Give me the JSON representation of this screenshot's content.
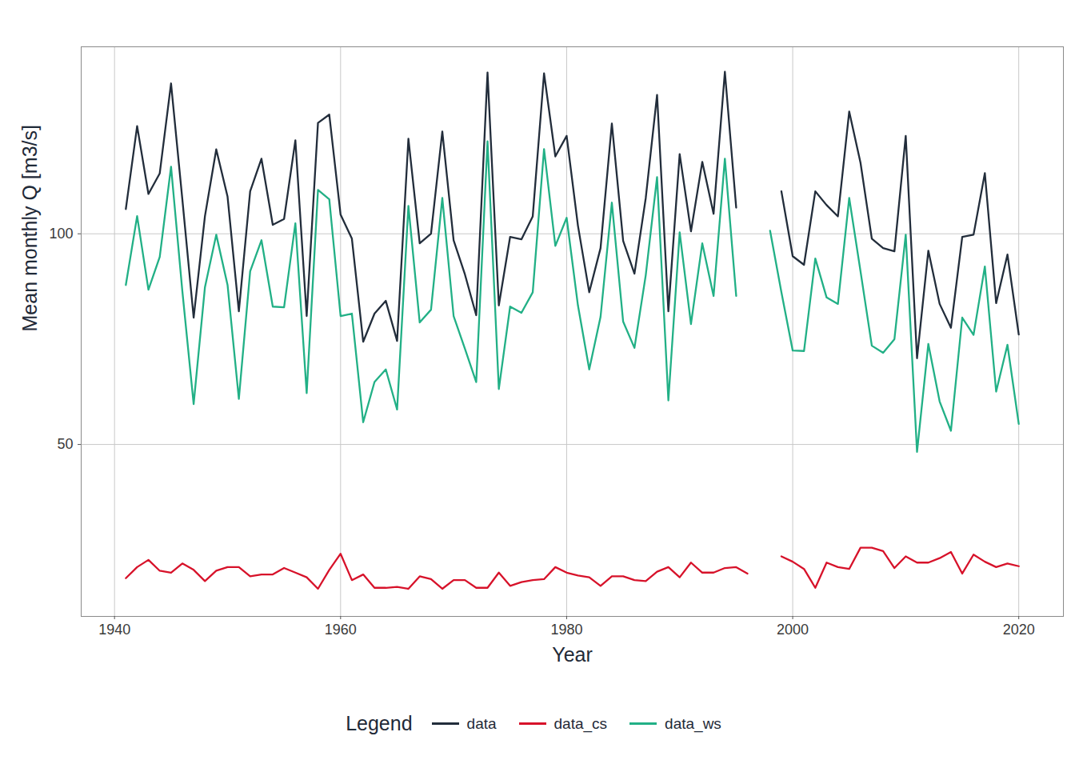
{
  "chart_data": {
    "type": "line",
    "x_label": "Year",
    "y_label": "Mean monthly Q [m3/s]",
    "legend_title": "Legend",
    "legend": "bottom",
    "grid": true,
    "log": "y",
    "xlim": [
      1937.05,
      2023.95
    ],
    "xticks": [
      1940,
      1960,
      1980,
      2000,
      2020
    ],
    "ylim": [
      28.4,
      185
    ],
    "yticks": [
      50,
      100
    ],
    "x": [
      1941,
      1942,
      1943,
      1944,
      1945,
      1946,
      1947,
      1948,
      1949,
      1950,
      1951,
      1952,
      1953,
      1954,
      1955,
      1956,
      1957,
      1958,
      1959,
      1960,
      1961,
      1962,
      1963,
      1964,
      1965,
      1966,
      1967,
      1968,
      1969,
      1970,
      1971,
      1972,
      1973,
      1974,
      1975,
      1976,
      1977,
      1978,
      1979,
      1980,
      1981,
      1982,
      1983,
      1984,
      1985,
      1986,
      1987,
      1988,
      1989,
      1990,
      1991,
      1992,
      1993,
      1994,
      1995,
      1996,
      1997,
      1998,
      1999,
      2000,
      2001,
      2002,
      2003,
      2004,
      2005,
      2006,
      2007,
      2008,
      2009,
      2010,
      2011,
      2012,
      2013,
      2014,
      2015,
      2016,
      2017,
      2018,
      2019,
      2020
    ],
    "series": [
      {
        "name": "data",
        "color": "#222d3b",
        "values": [
          108.5,
          142.5,
          114,
          122,
          164,
          112,
          75.9,
          106,
          132,
          113,
          77.5,
          115,
          128,
          103,
          105,
          136,
          76.3,
          144,
          148,
          106.5,
          98.4,
          70.1,
          76.9,
          80.2,
          70.3,
          136.7,
          96.9,
          100,
          140,
          97.9,
          87.5,
          76.5,
          170,
          79,
          99,
          98.2,
          105.9,
          169.5,
          129,
          138,
          102.7,
          82.5,
          95.4,
          143.7,
          97.7,
          87.7,
          112.5,
          157.9,
          77.5,
          130,
          100.8,
          126.7,
          106.8,
          170.4,
          109,
          null,
          null,
          null,
          115,
          92.9,
          90.3,
          115,
          109.9,
          105.9,
          149.5,
          126.3,
          98.4,
          95.4,
          94.4,
          138,
          66.4,
          94.6,
          79.4,
          73.4,
          99,
          99.7,
          122.1,
          79.6,
          93.4,
          71.8
        ]
      },
      {
        "name": "data_cs",
        "color": "#d7122a",
        "values": [
          32.2,
          33.4,
          34.2,
          33,
          32.8,
          33.8,
          33.1,
          31.9,
          33,
          33.4,
          33.4,
          32.4,
          32.6,
          32.6,
          33.3,
          32.8,
          32.3,
          31.1,
          33.1,
          34.9,
          32,
          32.6,
          31.2,
          31.2,
          31.3,
          31.1,
          32.4,
          32.1,
          31.1,
          32,
          32,
          31.2,
          31.2,
          32.8,
          31.4,
          31.8,
          32,
          32.1,
          33.4,
          32.8,
          32.5,
          32.3,
          31.4,
          32.4,
          32.4,
          32,
          31.9,
          32.9,
          33.4,
          32.3,
          33.9,
          32.8,
          32.8,
          33.3,
          33.4,
          32.7,
          null,
          null,
          34.6,
          34,
          33.2,
          31.2,
          33.9,
          33.4,
          33.2,
          35.6,
          35.6,
          35.2,
          33.3,
          34.6,
          33.9,
          33.9,
          34.4,
          35.1,
          32.7,
          34.8,
          34,
          33.4,
          33.8,
          33.5
        ]
      },
      {
        "name": "data_ws",
        "color": "#22b086",
        "values": [
          84.5,
          106,
          83.2,
          92.7,
          124.7,
          82.8,
          57.1,
          83.9,
          99.7,
          84.5,
          58.1,
          88.4,
          97.9,
          78.7,
          78.5,
          103.5,
          59.2,
          115.5,
          112,
          76.3,
          76.9,
          53.8,
          61.4,
          64,
          56.1,
          109.6,
          74.7,
          77.9,
          112.5,
          76.3,
          68.5,
          61.4,
          135.6,
          60,
          78.7,
          77.1,
          82.5,
          132.1,
          96.1,
          105.4,
          79,
          64,
          76.1,
          110.8,
          74.9,
          68.7,
          87.3,
          120.5,
          57.8,
          100.5,
          74.3,
          96.9,
          81.5,
          128,
          81.5,
          null,
          null,
          101,
          82.5,
          68.1,
          68,
          92.2,
          81.1,
          79.4,
          112.5,
          88.4,
          69.2,
          67.6,
          70.7,
          99.7,
          48.8,
          69.6,
          57.6,
          52.3,
          75.9,
          71.7,
          89.8,
          59.5,
          69.4,
          53.5
        ]
      }
    ]
  }
}
